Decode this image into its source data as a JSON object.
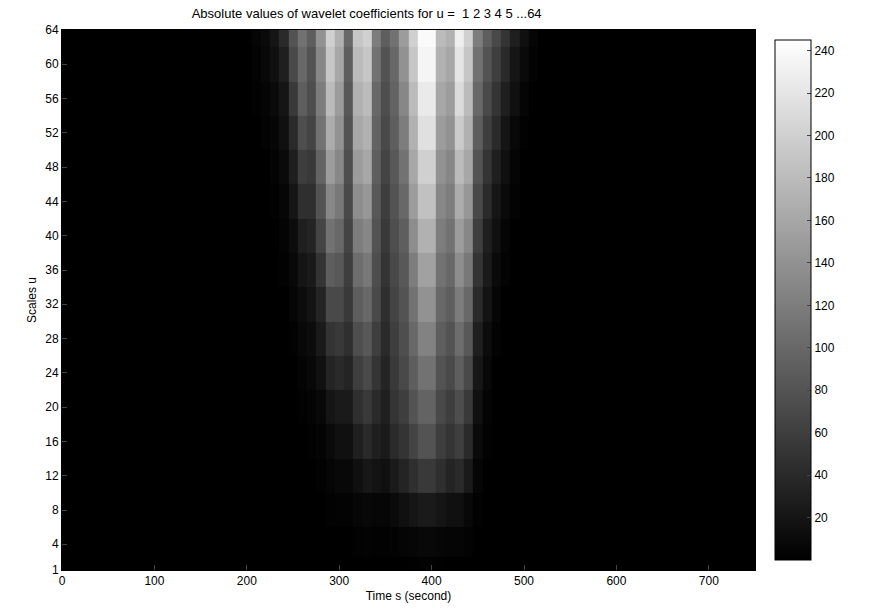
{
  "chart_data": {
    "type": "heatmap",
    "title": "Absolute values of wavelet coefficients for u =  1 2 3 4 5 ...64",
    "x_label": "Time s (second)",
    "y_label": "Scales u",
    "color": "gray",
    "x": [
      0,
      100,
      180,
      200,
      210,
      220,
      230,
      240,
      250,
      260,
      270,
      280,
      290,
      300,
      310,
      320,
      330,
      340,
      350,
      360,
      370,
      380,
      390,
      400,
      410,
      420,
      430,
      440,
      450,
      460,
      470,
      480,
      490,
      500,
      510,
      520,
      540,
      650,
      750
    ],
    "y": [
      1,
      4,
      8,
      12,
      16,
      20,
      24,
      28,
      32,
      36,
      40,
      44,
      48,
      52,
      56,
      60,
      64
    ],
    "z": [
      [
        0,
        0,
        0,
        0,
        0,
        0,
        0,
        0,
        0,
        0,
        0,
        0,
        0,
        0,
        0,
        0,
        0,
        0,
        0,
        0,
        0,
        1,
        2,
        2,
        1,
        0,
        0,
        0,
        0,
        0,
        0,
        0,
        0,
        0,
        0,
        0,
        0,
        0,
        0
      ],
      [
        0,
        0,
        0,
        0,
        0,
        0,
        0,
        0,
        0,
        0,
        0,
        0,
        0,
        0,
        0,
        2,
        3,
        2,
        2,
        3,
        5,
        6,
        8,
        8,
        6,
        5,
        5,
        3,
        0,
        0,
        0,
        0,
        0,
        0,
        0,
        0,
        0,
        0,
        0
      ],
      [
        0,
        0,
        0,
        0,
        0,
        0,
        0,
        0,
        0,
        0,
        0,
        0,
        2,
        3,
        3,
        6,
        8,
        6,
        6,
        10,
        15,
        20,
        25,
        25,
        20,
        15,
        15,
        8,
        2,
        0,
        0,
        0,
        0,
        0,
        0,
        0,
        0,
        0,
        0
      ],
      [
        0,
        0,
        0,
        0,
        0,
        0,
        0,
        0,
        0,
        0,
        0,
        2,
        5,
        8,
        8,
        15,
        22,
        18,
        15,
        25,
        35,
        45,
        55,
        55,
        45,
        35,
        40,
        25,
        5,
        0,
        0,
        0,
        0,
        0,
        0,
        0,
        0,
        0,
        0
      ],
      [
        0,
        0,
        0,
        0,
        0,
        0,
        0,
        0,
        0,
        0,
        2,
        4,
        10,
        15,
        15,
        30,
        40,
        30,
        25,
        40,
        50,
        65,
        80,
        80,
        60,
        50,
        60,
        40,
        10,
        2,
        0,
        0,
        0,
        0,
        0,
        0,
        0,
        0,
        0
      ],
      [
        0,
        0,
        0,
        0,
        0,
        0,
        0,
        0,
        0,
        2,
        4,
        8,
        20,
        25,
        25,
        45,
        55,
        40,
        30,
        50,
        60,
        80,
        95,
        95,
        70,
        60,
        75,
        55,
        15,
        4,
        0,
        0,
        0,
        0,
        0,
        0,
        0,
        0,
        0
      ],
      [
        0,
        0,
        0,
        0,
        0,
        0,
        0,
        0,
        0,
        4,
        8,
        15,
        35,
        40,
        35,
        60,
        70,
        50,
        35,
        55,
        70,
        90,
        110,
        110,
        80,
        70,
        90,
        70,
        22,
        8,
        0,
        0,
        0,
        0,
        0,
        0,
        0,
        0,
        0
      ],
      [
        0,
        0,
        0,
        0,
        0,
        0,
        0,
        0,
        2,
        8,
        12,
        25,
        50,
        55,
        45,
        75,
        85,
        60,
        40,
        60,
        75,
        100,
        125,
        125,
        90,
        80,
        105,
        85,
        30,
        12,
        3,
        0,
        0,
        0,
        0,
        0,
        0,
        0,
        0
      ],
      [
        0,
        0,
        0,
        0,
        0,
        0,
        0,
        0,
        5,
        12,
        18,
        35,
        70,
        70,
        55,
        90,
        100,
        70,
        45,
        65,
        80,
        110,
        140,
        140,
        100,
        90,
        120,
        100,
        40,
        18,
        6,
        0,
        0,
        0,
        0,
        0,
        0,
        0,
        0
      ],
      [
        0,
        0,
        0,
        0,
        0,
        0,
        0,
        2,
        8,
        20,
        25,
        50,
        90,
        85,
        60,
        105,
        115,
        75,
        50,
        70,
        85,
        120,
        155,
        155,
        110,
        100,
        135,
        115,
        50,
        25,
        10,
        3,
        0,
        0,
        0,
        0,
        0,
        0,
        0
      ],
      [
        0,
        0,
        0,
        0,
        0,
        0,
        0,
        4,
        12,
        30,
        35,
        65,
        110,
        100,
        65,
        120,
        130,
        80,
        55,
        75,
        90,
        135,
        170,
        170,
        120,
        110,
        150,
        130,
        60,
        30,
        15,
        5,
        0,
        0,
        0,
        0,
        0,
        0,
        0
      ],
      [
        0,
        0,
        0,
        0,
        0,
        0,
        2,
        6,
        20,
        45,
        45,
        80,
        130,
        115,
        70,
        135,
        145,
        85,
        60,
        80,
        100,
        150,
        185,
        185,
        130,
        120,
        165,
        145,
        70,
        40,
        20,
        10,
        3,
        0,
        0,
        0,
        0,
        0,
        0
      ],
      [
        0,
        0,
        0,
        0,
        0,
        0,
        4,
        10,
        30,
        60,
        55,
        95,
        150,
        130,
        75,
        150,
        160,
        90,
        65,
        85,
        110,
        160,
        200,
        200,
        140,
        130,
        180,
        160,
        80,
        50,
        30,
        15,
        5,
        0,
        0,
        0,
        0,
        0,
        0
      ],
      [
        0,
        0,
        0,
        0,
        0,
        3,
        6,
        15,
        40,
        75,
        65,
        110,
        165,
        140,
        80,
        160,
        170,
        95,
        70,
        90,
        120,
        170,
        215,
        215,
        150,
        140,
        195,
        170,
        90,
        60,
        40,
        20,
        8,
        2,
        0,
        0,
        0,
        0,
        0
      ],
      [
        0,
        0,
        0,
        0,
        2,
        5,
        10,
        20,
        55,
        90,
        75,
        120,
        180,
        150,
        85,
        170,
        180,
        100,
        75,
        95,
        130,
        180,
        225,
        225,
        160,
        150,
        210,
        180,
        100,
        70,
        50,
        30,
        15,
        5,
        0,
        0,
        0,
        0,
        0
      ],
      [
        0,
        0,
        0,
        0,
        3,
        8,
        15,
        30,
        70,
        100,
        80,
        130,
        190,
        160,
        90,
        180,
        190,
        110,
        80,
        100,
        140,
        190,
        235,
        235,
        170,
        160,
        220,
        190,
        110,
        80,
        60,
        40,
        20,
        10,
        3,
        0,
        0,
        0,
        0
      ],
      [
        0,
        0,
        0,
        0,
        5,
        10,
        20,
        40,
        80,
        110,
        90,
        140,
        200,
        170,
        100,
        190,
        200,
        120,
        90,
        110,
        150,
        200,
        240,
        240,
        180,
        170,
        230,
        200,
        120,
        90,
        70,
        50,
        30,
        15,
        5,
        0,
        0,
        0,
        0
      ]
    ],
    "xlim": [
      0,
      750
    ],
    "ylim": [
      1,
      64
    ],
    "xticks": [
      0,
      100,
      200,
      300,
      400,
      500,
      600,
      700
    ],
    "yticks": [
      1,
      4,
      8,
      12,
      16,
      20,
      24,
      28,
      32,
      36,
      40,
      44,
      48,
      52,
      56,
      60,
      64
    ],
    "zlim": [
      0,
      245
    ],
    "zticks": [
      20,
      40,
      60,
      80,
      100,
      120,
      140,
      160,
      180,
      200,
      220,
      240
    ]
  }
}
